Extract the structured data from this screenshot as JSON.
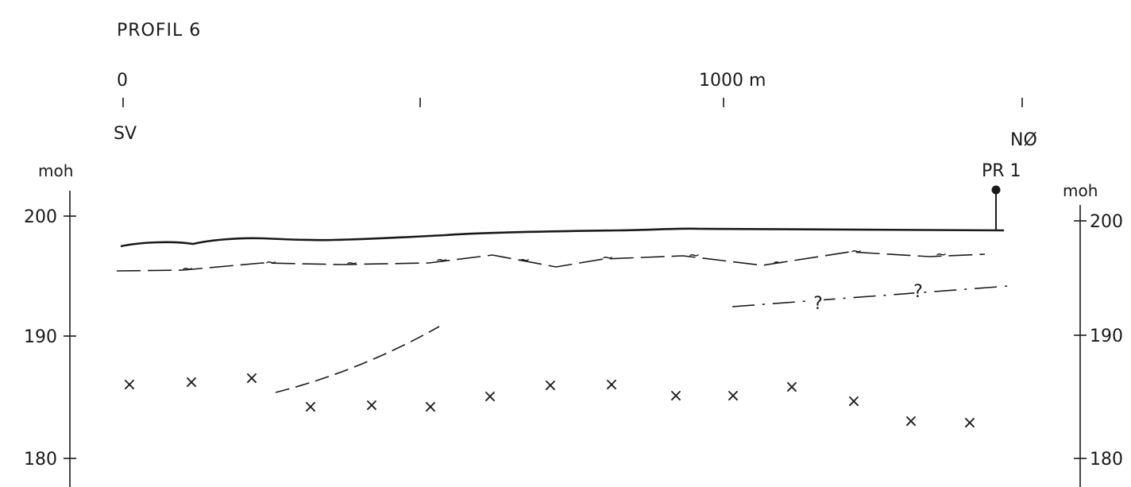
{
  "title": "PROFIL  6",
  "distance_scale": {
    "start_label": "0",
    "mid_label": "1000 m"
  },
  "directions": {
    "left": "SV",
    "right": "NØ"
  },
  "elevation_axes": {
    "unit_left": "moh",
    "unit_right": "moh",
    "ticks": [
      "200",
      "190",
      "180"
    ]
  },
  "well": {
    "label": "PR 1"
  },
  "uncertain_marker": "?",
  "rock_symbol": "×",
  "colors": {
    "ink": "#1a1a1a",
    "background": "#ffffff"
  }
}
